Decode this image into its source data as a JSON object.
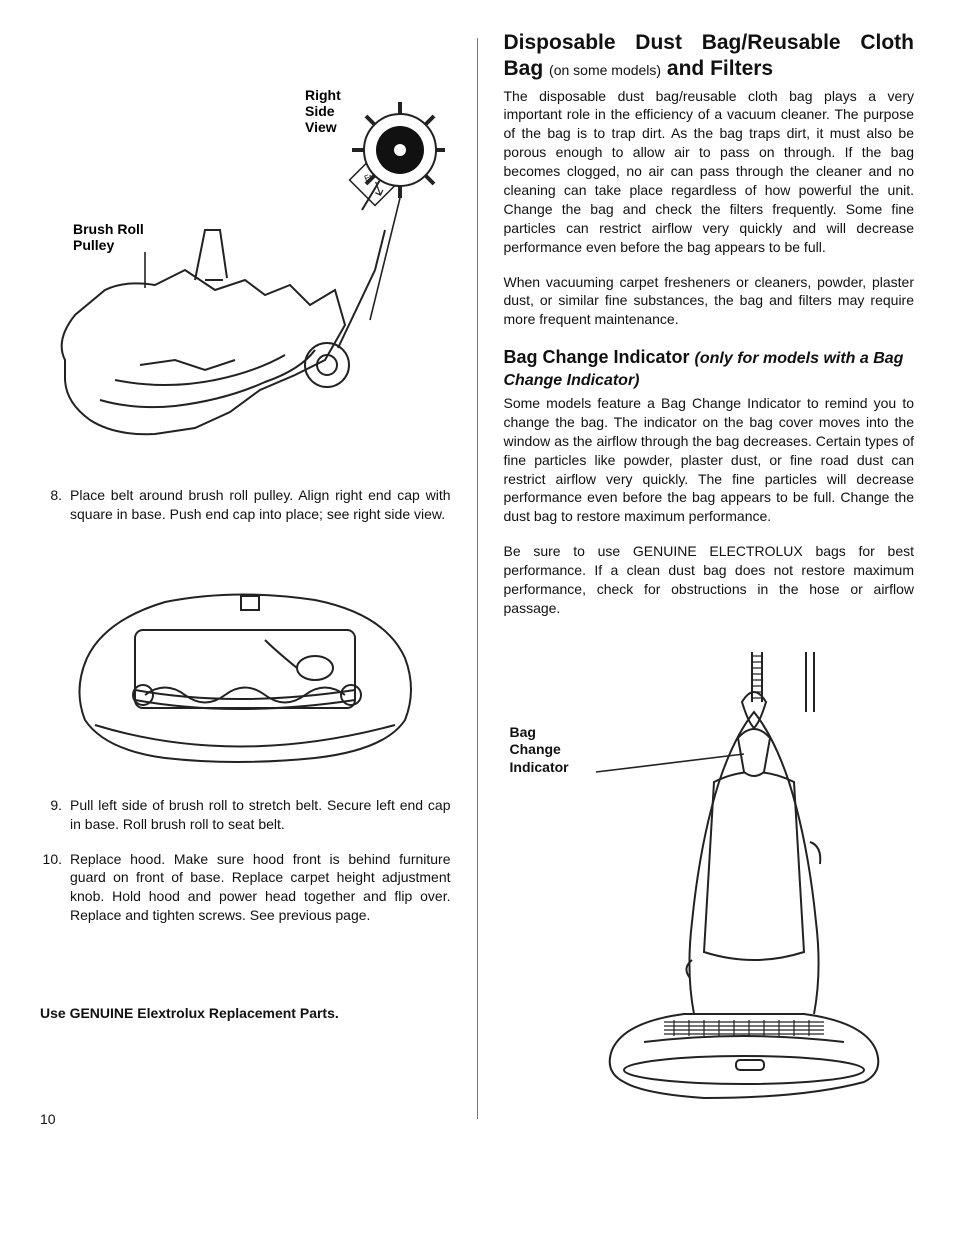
{
  "page_number": "10",
  "left": {
    "figure1": {
      "label_right_side_view": "Right\nSide\nView",
      "label_brush_roll_pulley": "Brush Roll\nPulley",
      "front_text": "Front"
    },
    "steps": {
      "s8_num": "8.",
      "s8_text": "Place belt around brush roll pulley. Align right end cap with square in base. Push end cap into place; see right side view.",
      "s9_num": "9.",
      "s9_text": "Pull left side of brush roll to stretch belt. Secure left end cap in base. Roll brush roll to seat belt.",
      "s10_num": "10.",
      "s10_text": "Replace hood. Make sure hood front is behind furniture guard on front of base. Replace carpet height adjustment knob. Hold hood and power head together and flip over. Replace and tighten screws. See previous page."
    },
    "genuine": "Use GENUINE Elextrolux Replacement Parts."
  },
  "right": {
    "title_a": "Disposable Dust Bag/Reusable Cloth Bag",
    "title_note": "(on some models)",
    "title_b": "and Filters",
    "p1": "The disposable dust bag/reusable cloth bag plays a very important role in the efficiency of a vacuum cleaner. The purpose of the bag is to trap dirt. As the bag traps dirt, it must also be porous enough to allow air to pass on through. If the bag becomes clogged, no air can pass through the cleaner and no cleaning can take place regardless of how powerful the unit. Change the bag and check the filters frequently. Some fine particles can restrict airflow very quickly and will decrease performance even before the bag appears to be full.",
    "p2": "When vacuuming carpet fresheners or cleaners, powder, plaster dust, or similar fine substances, the bag and filters may require more frequent maintenance.",
    "h2_a": "Bag Change Indicator",
    "h2_sub": "(only for models with a Bag Change Indicator)",
    "p3": "Some models feature a Bag Change Indicator to remind you to change the bag. The indicator on the bag cover moves into the window as the airflow through the bag decreases. Certain types of fine particles like powder, plaster dust, or fine road dust can restrict airflow very quickly. The fine particles will decrease performance even before the bag appears to be full. Change the dust bag to restore maximum performance.",
    "p4": "Be sure to use GENUINE ELECTROLUX bags for best performance. If a clean dust bag does not restore maximum performance, check for obstructions in the hose or airflow passage.",
    "fig_label": "Bag\nChange\nIndicator"
  },
  "colors": {
    "text": "#111111",
    "line": "#222222"
  }
}
